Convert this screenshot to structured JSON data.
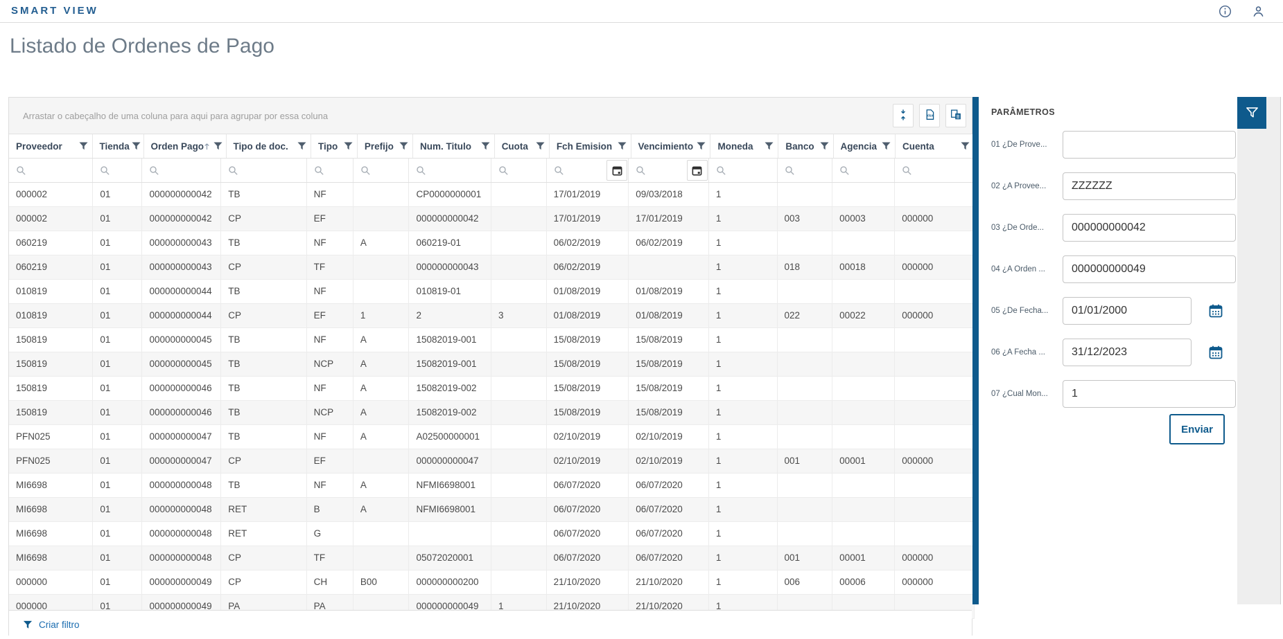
{
  "app": {
    "brand": "SMART VIEW",
    "topbar_icons": [
      "info-icon",
      "user-icon"
    ]
  },
  "page": {
    "title": "Listado de Ordenes de Pago"
  },
  "grid": {
    "group_panel_text": "Arrastar o cabeçalho de uma coluna para aqui para agrupar por essa coluna",
    "toolbar": [
      {
        "name": "row-spacing-button",
        "icon": "row-spacing-icon"
      },
      {
        "name": "export-xlsx-button",
        "icon": "export-xlsx-icon"
      },
      {
        "name": "column-chooser-button",
        "icon": "column-chooser-icon"
      }
    ],
    "columns": [
      {
        "label": "Proveedor",
        "width": 127,
        "filter": "text"
      },
      {
        "label": "Tienda",
        "width": 74,
        "filter": "text"
      },
      {
        "label": "Orden Pago",
        "width": 119,
        "filter": "text",
        "sorted": "asc"
      },
      {
        "label": "Tipo de doc.",
        "width": 129,
        "filter": "text"
      },
      {
        "label": "Tipo",
        "width": 70,
        "filter": "text"
      },
      {
        "label": "Prefijo",
        "width": 84,
        "filter": "text"
      },
      {
        "label": "Num. Titulo",
        "width": 124,
        "filter": "text"
      },
      {
        "label": "Cuota",
        "width": 83,
        "filter": "text"
      },
      {
        "label": "Fch Emision",
        "width": 124,
        "filter": "date"
      },
      {
        "label": "Vencimiento",
        "width": 121,
        "filter": "date"
      },
      {
        "label": "Moneda",
        "width": 103,
        "filter": "text"
      },
      {
        "label": "Banco",
        "width": 83,
        "filter": "text"
      },
      {
        "label": "Agencia",
        "width": 94,
        "filter": "text"
      },
      {
        "label": "Cuenta",
        "width": 120,
        "filter": "text"
      }
    ],
    "rows": [
      [
        "000002",
        "01",
        "000000000042",
        "TB",
        "NF",
        "",
        "CP0000000001",
        "",
        "17/01/2019",
        "09/03/2018",
        "1",
        "",
        "",
        ""
      ],
      [
        "000002",
        "01",
        "000000000042",
        "CP",
        "EF",
        "",
        "000000000042",
        "",
        "17/01/2019",
        "17/01/2019",
        "1",
        "003",
        "00003",
        "000000"
      ],
      [
        "060219",
        "01",
        "000000000043",
        "TB",
        "NF",
        "A",
        "060219-01",
        "",
        "06/02/2019",
        "06/02/2019",
        "1",
        "",
        "",
        ""
      ],
      [
        "060219",
        "01",
        "000000000043",
        "CP",
        "TF",
        "",
        "000000000043",
        "",
        "06/02/2019",
        "",
        "1",
        "018",
        "00018",
        "000000"
      ],
      [
        "010819",
        "01",
        "000000000044",
        "TB",
        "NF",
        "",
        "010819-01",
        "",
        "01/08/2019",
        "01/08/2019",
        "1",
        "",
        "",
        ""
      ],
      [
        "010819",
        "01",
        "000000000044",
        "CP",
        "EF",
        "1",
        "2",
        "3",
        "01/08/2019",
        "01/08/2019",
        "1",
        "022",
        "00022",
        "000000"
      ],
      [
        "150819",
        "01",
        "000000000045",
        "TB",
        "NF",
        "A",
        "15082019-001",
        "",
        "15/08/2019",
        "15/08/2019",
        "1",
        "",
        "",
        ""
      ],
      [
        "150819",
        "01",
        "000000000045",
        "TB",
        "NCP",
        "A",
        "15082019-001",
        "",
        "15/08/2019",
        "15/08/2019",
        "1",
        "",
        "",
        ""
      ],
      [
        "150819",
        "01",
        "000000000046",
        "TB",
        "NF",
        "A",
        "15082019-002",
        "",
        "15/08/2019",
        "15/08/2019",
        "1",
        "",
        "",
        ""
      ],
      [
        "150819",
        "01",
        "000000000046",
        "TB",
        "NCP",
        "A",
        "15082019-002",
        "",
        "15/08/2019",
        "15/08/2019",
        "1",
        "",
        "",
        ""
      ],
      [
        "PFN025",
        "01",
        "000000000047",
        "TB",
        "NF",
        "A",
        "A02500000001",
        "",
        "02/10/2019",
        "02/10/2019",
        "1",
        "",
        "",
        ""
      ],
      [
        "PFN025",
        "01",
        "000000000047",
        "CP",
        "EF",
        "",
        "000000000047",
        "",
        "02/10/2019",
        "02/10/2019",
        "1",
        "001",
        "00001",
        "000000"
      ],
      [
        "MI6698",
        "01",
        "000000000048",
        "TB",
        "NF",
        "A",
        "NFMI6698001",
        "",
        "06/07/2020",
        "06/07/2020",
        "1",
        "",
        "",
        ""
      ],
      [
        "MI6698",
        "01",
        "000000000048",
        "RET",
        "B",
        "A",
        "NFMI6698001",
        "",
        "06/07/2020",
        "06/07/2020",
        "1",
        "",
        "",
        ""
      ],
      [
        "MI6698",
        "01",
        "000000000048",
        "RET",
        "G",
        "",
        "",
        "",
        "06/07/2020",
        "06/07/2020",
        "1",
        "",
        "",
        ""
      ],
      [
        "MI6698",
        "01",
        "000000000048",
        "CP",
        "TF",
        "",
        "05072020001",
        "",
        "06/07/2020",
        "06/07/2020",
        "1",
        "001",
        "00001",
        "000000"
      ],
      [
        "000000",
        "01",
        "000000000049",
        "CP",
        "CH",
        "B00",
        "000000000200",
        "",
        "21/10/2020",
        "21/10/2020",
        "1",
        "006",
        "00006",
        "000000"
      ],
      [
        "000000",
        "01",
        "000000000049",
        "PA",
        "PA",
        "",
        "000000000049",
        "1",
        "21/10/2020",
        "21/10/2020",
        "1",
        "",
        "",
        ""
      ]
    ],
    "footer_link": "Criar filtro"
  },
  "params": {
    "title": "PARÂMETROS",
    "fields": [
      {
        "id": "01",
        "label": "01 ¿De Prove...",
        "value": "",
        "type": "text"
      },
      {
        "id": "02",
        "label": "02 ¿A Provee...",
        "value": "ZZZZZZ",
        "type": "text"
      },
      {
        "id": "03",
        "label": "03 ¿De Orde...",
        "value": "000000000042",
        "type": "text"
      },
      {
        "id": "04",
        "label": "04 ¿A Orden ...",
        "value": "000000000049",
        "type": "text"
      },
      {
        "id": "05",
        "label": "05 ¿De Fecha...",
        "value": "01/01/2000",
        "type": "date"
      },
      {
        "id": "06",
        "label": "06 ¿A Fecha ...",
        "value": "31/12/2023",
        "type": "date"
      },
      {
        "id": "07",
        "label": "07 ¿Cual Mon...",
        "value": "1",
        "type": "text"
      }
    ],
    "submit_label": "Enviar",
    "filter_toggle_icon": "filter-icon"
  },
  "colors": {
    "primary": "#0e5a8c",
    "brand_text": "#235e91",
    "link": "#1a6cb0",
    "title_text": "#6d7b88",
    "rail_bg": "#eeeeee",
    "row_alt": "#f6f6f6",
    "panel_divider": "#0e5a8c"
  }
}
